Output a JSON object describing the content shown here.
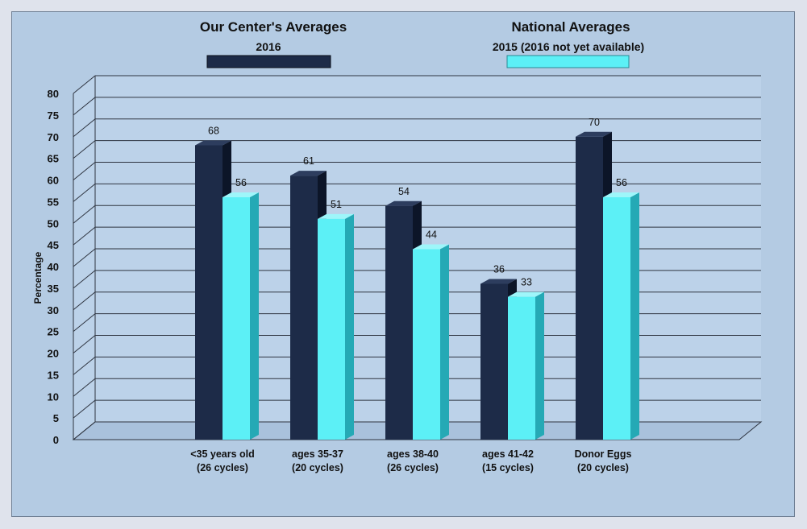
{
  "chart_data": {
    "type": "bar",
    "style": "3d-clustered-column",
    "title": "",
    "xlabel": "",
    "ylabel": "Percentage",
    "ylim": [
      0,
      80
    ],
    "ytick_step": 5,
    "grid": true,
    "legend_placement": "top",
    "categories": [
      {
        "line1": "<35 years old",
        "line2": "(26 cycles)"
      },
      {
        "line1": "ages 35-37",
        "line2": "(20 cycles)"
      },
      {
        "line1": "ages 38-40",
        "line2": "(26 cycles)"
      },
      {
        "line1": "ages 41-42",
        "line2": "(15 cycles)"
      },
      {
        "line1": "Donor Eggs",
        "line2": "(20 cycles)"
      }
    ],
    "series": [
      {
        "name": "Our Center's Averages",
        "subtitle": "2016",
        "values": [
          68,
          61,
          54,
          36,
          70
        ],
        "labels": [
          "68",
          "61",
          "54",
          "36",
          "70"
        ]
      },
      {
        "name": "National  Averages",
        "subtitle": "2015 (2016 not yet available)",
        "values": [
          56,
          51,
          44,
          33,
          56
        ],
        "labels": [
          "56",
          "51",
          "44",
          "33",
          "56"
        ]
      }
    ]
  },
  "colors": {
    "series1_front": "#1d2b48",
    "series1_side": "#0c1528",
    "series1_top": "#2d3d5e",
    "series2_front": "#5cf0f6",
    "series2_side": "#25a9b5",
    "series2_top": "#9ef6fa",
    "wall": "#bcd2e9",
    "floor": "#a9c1dc",
    "gridline": "#2e3440"
  }
}
